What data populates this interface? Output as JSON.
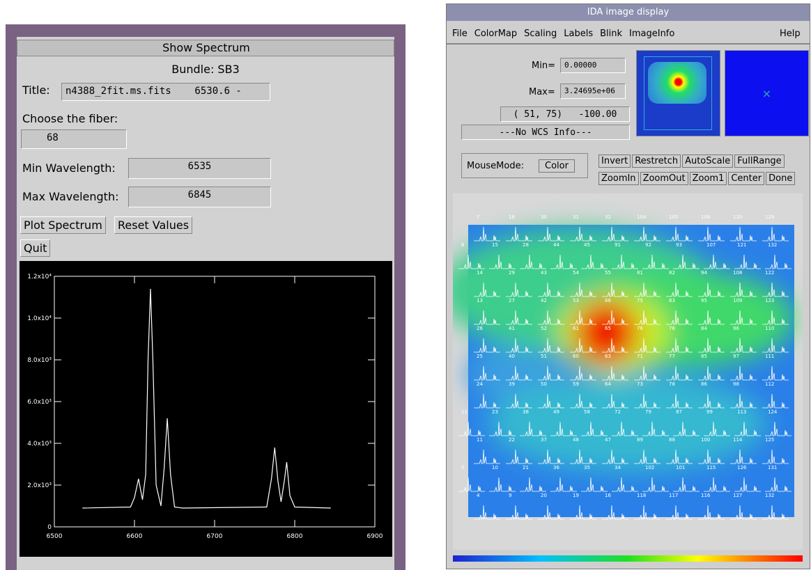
{
  "left_window": {
    "title": "Show Spectrum",
    "bundle": "Bundle: SB3",
    "title_label": "Title:",
    "title_value": "n4388_2fit.ms.fits    6530.6 -",
    "fiber_label": "Choose the fiber:",
    "fiber_value": "68",
    "min_label": "Min Wavelength:",
    "min_value": "6535",
    "max_label": "Max Wavelength:",
    "max_value": "6845",
    "buttons": [
      "Plot Spectrum",
      "Reset Values"
    ],
    "quit": "Quit"
  },
  "right_window": {
    "title": "IDA image display",
    "menu": [
      "File",
      "ColorMap",
      "Scaling",
      "Labels",
      "Blink",
      "ImageInfo"
    ],
    "help": "Help",
    "min_label": "Min=",
    "min_value": "0.00000",
    "max_label": "Max=",
    "max_value": "3.24695e+06",
    "cursor": "( 51, 75)   -100.00",
    "wcs": "---No WCS Info---",
    "mousemode_label": "MouseMode:",
    "mousemode_value": "Color",
    "buttons_row1": [
      "Invert",
      "Restretch",
      "AutoScale",
      "FullRange"
    ],
    "buttons_row2": [
      "ZoomIn",
      "ZoomOut",
      "Zoom1",
      "Center",
      "Done"
    ],
    "fiber_rows": [
      [
        "7",
        "18",
        "30",
        "31",
        "32",
        "104",
        "105",
        "106",
        "120",
        "129"
      ],
      [
        "6",
        "15",
        "28",
        "44",
        "45",
        "91",
        "92",
        "93",
        "107",
        "121",
        "132"
      ],
      [
        "14",
        "29",
        "43",
        "54",
        "55",
        "81",
        "82",
        "94",
        "108",
        "122"
      ],
      [
        "13",
        "27",
        "42",
        "53",
        "66",
        "75",
        "83",
        "95",
        "109",
        "123"
      ],
      [
        "26",
        "41",
        "52",
        "61",
        "65",
        "76",
        "78",
        "84",
        "96",
        "110"
      ],
      [
        "25",
        "40",
        "51",
        "60",
        "63",
        "71",
        "77",
        "85",
        "97",
        "111"
      ],
      [
        "24",
        "39",
        "50",
        "59",
        "64",
        "73",
        "78",
        "86",
        "98",
        "112"
      ],
      [
        "12",
        "23",
        "38",
        "49",
        "58",
        "72",
        "79",
        "87",
        "99",
        "113",
        "124"
      ],
      [
        "11",
        "22",
        "37",
        "48",
        "47",
        "89",
        "88",
        "100",
        "114",
        "125"
      ],
      [
        "5",
        "10",
        "21",
        "36",
        "35",
        "34",
        "102",
        "101",
        "115",
        "126",
        "131"
      ],
      [
        "4",
        "9",
        "20",
        "19",
        "16",
        "118",
        "117",
        "116",
        "127",
        "132"
      ]
    ]
  },
  "chart_data": {
    "type": "line",
    "x": [
      6535,
      6595,
      6600,
      6605,
      6610,
      6614,
      6617,
      6620,
      6623,
      6627,
      6633,
      6637,
      6641,
      6645,
      6650,
      6660,
      6765,
      6771,
      6775,
      6779,
      6783,
      6787,
      6790,
      6794,
      6800,
      6845
    ],
    "values": [
      900,
      950,
      1400,
      2300,
      1300,
      2500,
      8000,
      11400,
      8000,
      2000,
      1000,
      2800,
      5200,
      2500,
      950,
      900,
      950,
      2300,
      3800,
      2200,
      1200,
      2200,
      3100,
      1500,
      950,
      900
    ],
    "color": "#ffffff",
    "xlim": [
      6500,
      6900
    ],
    "ylim": [
      0,
      12000
    ],
    "xticks": [
      6500,
      6600,
      6700,
      6800,
      6900
    ],
    "yticks": [
      0,
      {
        "value": 2000,
        "label": "2.0x10³"
      },
      {
        "value": 4000,
        "label": "4.0x10³"
      },
      {
        "value": 6000,
        "label": "6.0x10³"
      },
      {
        "value": 8000,
        "label": "8.0x10³"
      },
      {
        "value": 10000,
        "label": "1.0x10⁴"
      },
      {
        "value": 12000,
        "label": "1.2x10⁴"
      }
    ]
  }
}
